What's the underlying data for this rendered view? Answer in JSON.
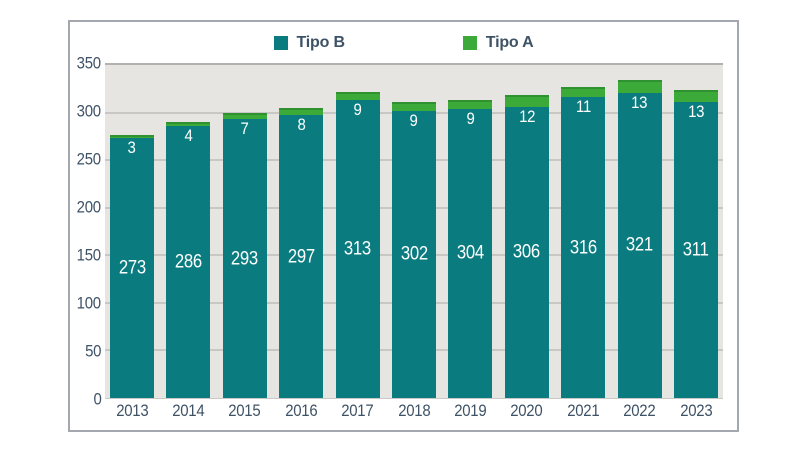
{
  "chart_data": {
    "type": "bar",
    "stacked": true,
    "title": "",
    "xlabel": "",
    "ylabel": "",
    "categories": [
      "2013",
      "2014",
      "2015",
      "2016",
      "2017",
      "2018",
      "2019",
      "2020",
      "2021",
      "2022",
      "2023"
    ],
    "series": [
      {
        "name": "Tipo B",
        "color": "#0a7c80",
        "label_color": "#ffffff",
        "values": [
          273,
          286,
          293,
          297,
          313,
          302,
          304,
          306,
          316,
          321,
          311
        ]
      },
      {
        "name": "Tipo A",
        "color": "#3caa38",
        "top_edge_color": "#2f9130",
        "label_color": "#ffffff",
        "values": [
          3,
          4,
          7,
          8,
          9,
          9,
          9,
          12,
          11,
          13,
          13
        ]
      }
    ],
    "ylim": [
      0,
      350
    ],
    "yticks": [
      0,
      50,
      100,
      150,
      200,
      250,
      300,
      350
    ],
    "grid": true,
    "legend_position": "top"
  },
  "theme": {
    "background": "#ffffff",
    "frame_border": "#a3a8ae",
    "plot_background": "#e7e5e2",
    "gridline_color": "#c9c7c4",
    "top_gridline_color": "#b3b1ae",
    "axis_text_color": "#3e5266"
  }
}
